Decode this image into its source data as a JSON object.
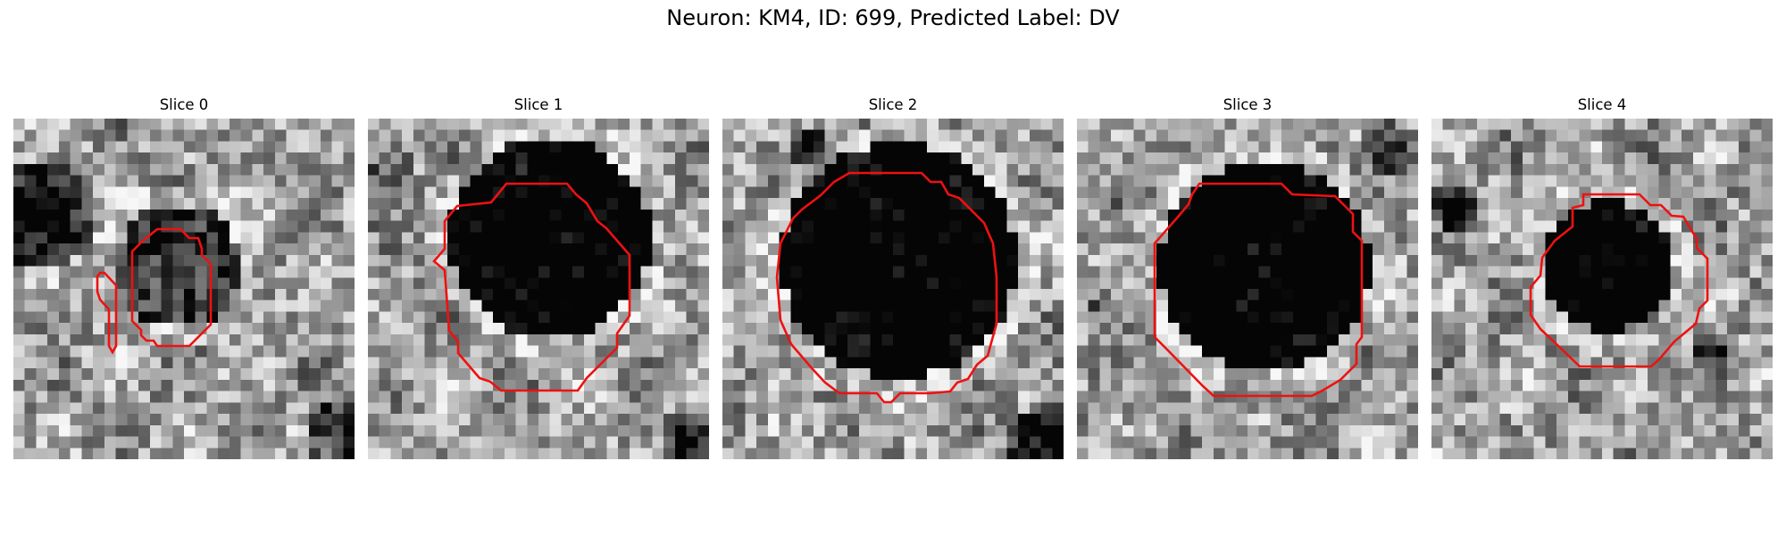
{
  "figure": {
    "title": "Neuron: KM4, ID: 699, Predicted Label: DV",
    "contour_color": "#ee1111"
  },
  "panels": [
    {
      "title": "Slice 0",
      "image": "grayscale-microscopy-crop"
    },
    {
      "title": "Slice 1",
      "image": "grayscale-microscopy-crop"
    },
    {
      "title": "Slice 2",
      "image": "grayscale-microscopy-crop"
    },
    {
      "title": "Slice 3",
      "image": "grayscale-microscopy-crop"
    },
    {
      "title": "Slice 4",
      "image": "grayscale-microscopy-crop"
    }
  ]
}
